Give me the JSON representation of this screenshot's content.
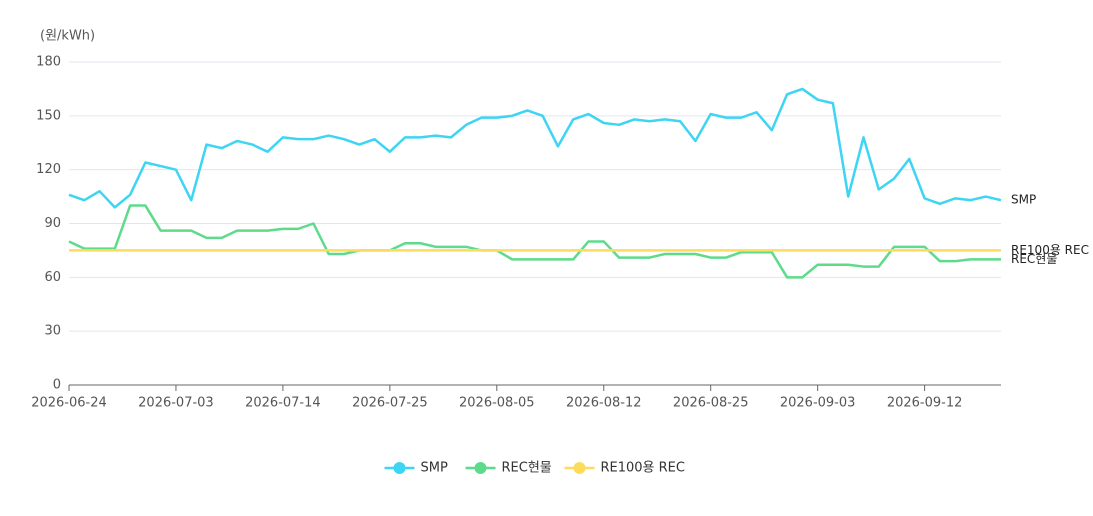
{
  "chart_data": {
    "type": "line",
    "y_label": "(원/kWh)",
    "categories": [
      "2026-06-24",
      null,
      null,
      null,
      null,
      null,
      null,
      "2026-07-03",
      null,
      null,
      null,
      null,
      null,
      null,
      "2026-07-14",
      null,
      null,
      null,
      null,
      null,
      null,
      "2026-07-25",
      null,
      null,
      null,
      null,
      null,
      null,
      "2026-08-05",
      null,
      null,
      null,
      null,
      null,
      null,
      "2026-08-12",
      null,
      null,
      null,
      null,
      null,
      null,
      "2026-08-25",
      null,
      null,
      null,
      null,
      null,
      null,
      "2026-09-03",
      null,
      null,
      null,
      null,
      null,
      null,
      "2026-09-12",
      null,
      null,
      null,
      null,
      null
    ],
    "series": [
      {
        "name": "SMP",
        "color": "#3dd5f3",
        "values": [
          106,
          103,
          108,
          99,
          106,
          124,
          122,
          120,
          103,
          134,
          132,
          136,
          134,
          130,
          138,
          137,
          137,
          139,
          137,
          134,
          137,
          130,
          138,
          138,
          139,
          138,
          145,
          149,
          149,
          150,
          153,
          150,
          133,
          148,
          151,
          146,
          145,
          148,
          147,
          148,
          147,
          136,
          151,
          149,
          149,
          152,
          142,
          162,
          165,
          159,
          157,
          105,
          138,
          109,
          115,
          126,
          104,
          101,
          104,
          103,
          105,
          103
        ]
      },
      {
        "name": "REC현물",
        "color": "#5ddb8a",
        "values": [
          80,
          76,
          76,
          76,
          100,
          100,
          86,
          86,
          86,
          82,
          82,
          86,
          86,
          86,
          87,
          87,
          90,
          73,
          73,
          75,
          75,
          75,
          79,
          79,
          77,
          77,
          77,
          75,
          75,
          70,
          70,
          70,
          70,
          70,
          80,
          80,
          71,
          71,
          71,
          73,
          73,
          73,
          71,
          71,
          74,
          74,
          74,
          60,
          60,
          67,
          67,
          67,
          66,
          66,
          77,
          77,
          77,
          69,
          69,
          70,
          70,
          70
        ]
      },
      {
        "name": "RE100용 REC",
        "color": "#fddc5c",
        "values": [
          75,
          75,
          75,
          75,
          75,
          75,
          75,
          75,
          75,
          75,
          75,
          75,
          75,
          75,
          75,
          75,
          75,
          75,
          75,
          75,
          75,
          75,
          75,
          75,
          75,
          75,
          75,
          75,
          75,
          75,
          75,
          75,
          75,
          75,
          75,
          75,
          75,
          75,
          75,
          75,
          75,
          75,
          75,
          75,
          75,
          75,
          75,
          75,
          75,
          75,
          75,
          75,
          75,
          75,
          75,
          75,
          75,
          75,
          75,
          75,
          75,
          75
        ]
      }
    ],
    "ylim": [
      0,
      180
    ],
    "yticks": [
      0,
      30,
      60,
      90,
      120,
      150,
      180
    ],
    "grid": true,
    "legend": "bottom"
  }
}
